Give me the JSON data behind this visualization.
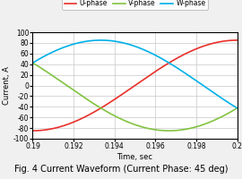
{
  "caption": "Fig. 4 Current Waveform (Current Phase: 45 deg)",
  "xlabel": "Time, sec",
  "ylabel": "Current, A",
  "xlim": [
    0.19,
    0.2
  ],
  "ylim": [
    -100,
    100
  ],
  "amplitude": 85,
  "frequency": 50,
  "phase_deg": 45,
  "x_ticks": [
    0.19,
    0.192,
    0.194,
    0.196,
    0.198,
    0.2
  ],
  "y_ticks": [
    -100,
    -80,
    -60,
    -40,
    -20,
    0,
    20,
    40,
    60,
    80,
    100
  ],
  "u_color": "#e8302a",
  "v_color": "#82c341",
  "w_color": "#00b0e8",
  "legend_labels": [
    "U-phase",
    "V-phase",
    "W-phase"
  ],
  "bg_color": "#f0f0f0",
  "plot_bg_color": "#ffffff",
  "grid_color": "#c8c8c8",
  "n_points": 1000
}
